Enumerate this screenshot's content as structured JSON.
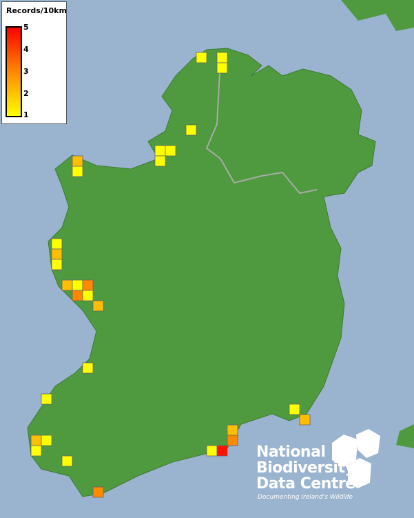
{
  "legend": {
    "title": "Records/10km",
    "scale_min": 1,
    "scale_max": 5,
    "ticks": [
      "5",
      "4",
      "3",
      "2",
      "1"
    ],
    "colors": {
      "1": "#ffff00",
      "2": "#ffbf00",
      "3": "#ff8800",
      "4": "#ff5500",
      "5": "#ff1100"
    }
  },
  "map": {
    "sea_color": "#9ab3cf",
    "land_color": "#4f9a3e",
    "records_per_square": [
      1,
      1,
      1,
      1,
      1,
      1,
      1,
      2,
      1,
      1,
      2,
      1,
      2,
      1,
      3,
      3,
      1,
      2,
      1,
      1,
      1,
      2,
      2,
      3,
      2,
      1,
      1,
      1,
      5,
      1,
      3
    ]
  },
  "logo": {
    "line1": "National",
    "line2": "Biodiversity",
    "line3": "Data Centre",
    "tagline": "Documenting Ireland's Wildlife"
  }
}
